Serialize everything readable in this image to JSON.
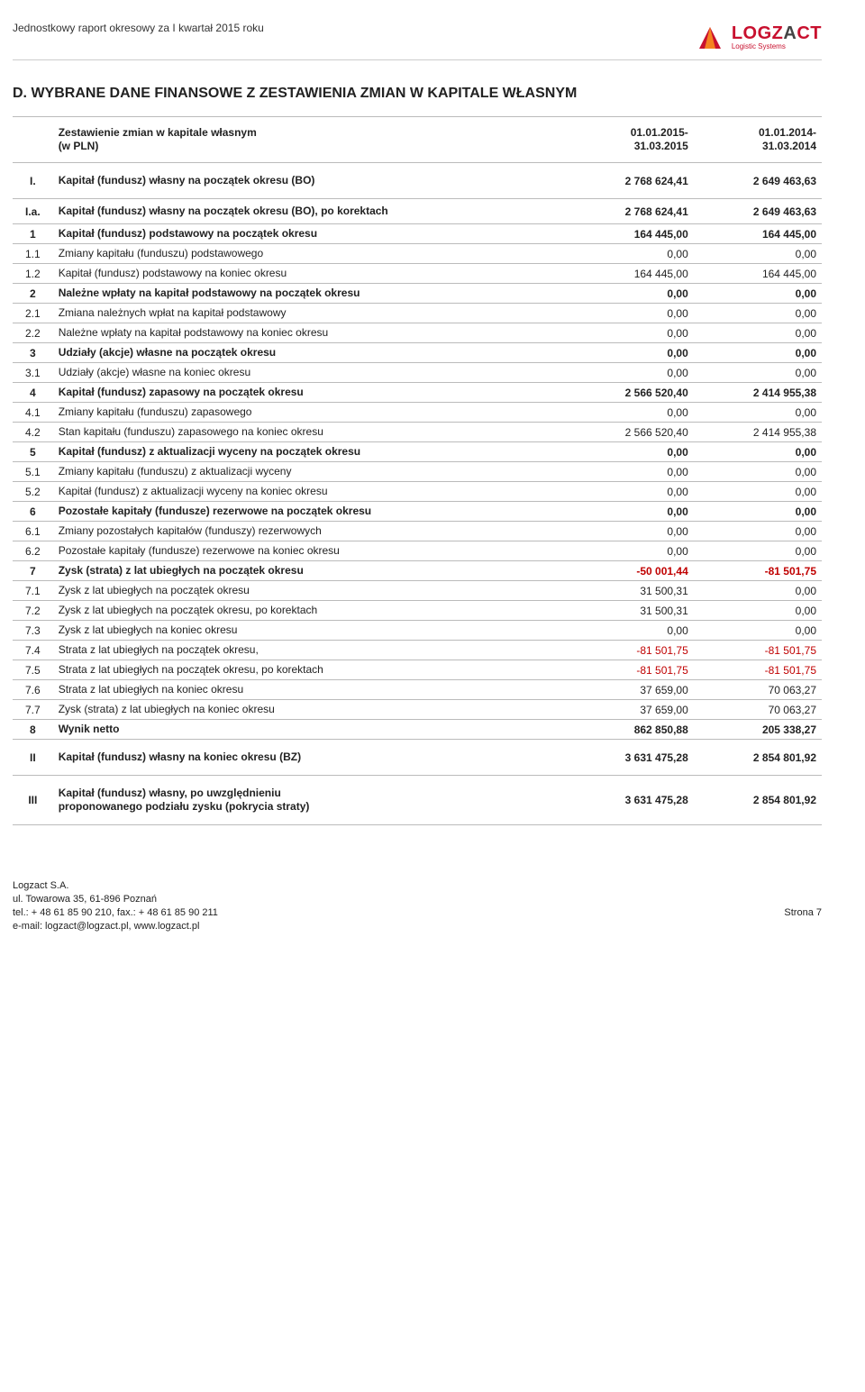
{
  "header": {
    "report_line": "Jednostkowy raport okresowy za I kwartał 2015 roku",
    "logo_main_l": "LOGZ",
    "logo_main_a": "A",
    "logo_main_ct": "CT",
    "logo_sub": "Logistic Systems",
    "logo_colors": {
      "red": "#c8102e",
      "orange": "#f58220",
      "dark": "#444"
    }
  },
  "section_title": "D.  WYBRANE DANE FINANSOWE Z ZESTAWIENIA ZMIAN W KAPITALE WŁASNYM",
  "table": {
    "head_label": "Zestawienie zmian w kapitale własnym\n(w PLN)",
    "head_c1": "01.01.2015-\n31.03.2015",
    "head_c2": "01.01.2014-\n31.03.2014",
    "rows": [
      {
        "id": "I.",
        "label": "Kapitał (fundusz) własny na początek okresu (BO)",
        "v1": "2 768 624,41",
        "v2": "2 649 463,63",
        "bold": true,
        "tall": true
      },
      {
        "id": "I.a.",
        "label": "Kapitał (fundusz) własny na początek okresu (BO), po korektach",
        "v1": "2 768 624,41",
        "v2": "2 649 463,63",
        "bold": true,
        "semitall": true
      },
      {
        "id": "1",
        "label": "Kapitał (fundusz) podstawowy na początek okresu",
        "v1": "164 445,00",
        "v2": "164 445,00",
        "bold": true
      },
      {
        "id": "1.1",
        "label": "Zmiany kapitału (funduszu) podstawowego",
        "v1": "0,00",
        "v2": "0,00"
      },
      {
        "id": "1.2",
        "label": "Kapitał (fundusz) podstawowy na koniec okresu",
        "v1": "164 445,00",
        "v2": "164 445,00"
      },
      {
        "id": "2",
        "label": "Należne wpłaty na kapitał podstawowy na początek okresu",
        "v1": "0,00",
        "v2": "0,00",
        "bold": true
      },
      {
        "id": "2.1",
        "label": "Zmiana należnych wpłat na kapitał podstawowy",
        "v1": "0,00",
        "v2": "0,00"
      },
      {
        "id": "2.2",
        "label": "Należne wpłaty na kapitał podstawowy na koniec okresu",
        "v1": "0,00",
        "v2": "0,00"
      },
      {
        "id": "3",
        "label": "Udziały (akcje) własne na początek okresu",
        "v1": "0,00",
        "v2": "0,00",
        "bold": true
      },
      {
        "id": "3.1",
        "label": "Udziały (akcje) własne na koniec okresu",
        "v1": "0,00",
        "v2": "0,00"
      },
      {
        "id": "4",
        "label": "Kapitał (fundusz) zapasowy na początek okresu",
        "v1": "2 566 520,40",
        "v2": "2 414 955,38",
        "bold": true
      },
      {
        "id": "4.1",
        "label": "Zmiany kapitału (funduszu) zapasowego",
        "v1": "0,00",
        "v2": "0,00"
      },
      {
        "id": "4.2",
        "label": "Stan kapitału (funduszu) zapasowego na koniec okresu",
        "v1": "2 566 520,40",
        "v2": "2 414 955,38"
      },
      {
        "id": "5",
        "label": "Kapitał (fundusz) z aktualizacji wyceny na początek okresu",
        "v1": "0,00",
        "v2": "0,00",
        "bold": true
      },
      {
        "id": "5.1",
        "label": "Zmiany kapitału (funduszu) z aktualizacji wyceny",
        "v1": "0,00",
        "v2": "0,00"
      },
      {
        "id": "5.2",
        "label": "Kapitał (fundusz) z aktualizacji wyceny na koniec okresu",
        "v1": "0,00",
        "v2": "0,00"
      },
      {
        "id": "6",
        "label": "Pozostałe  kapitały (fundusze) rezerwowe na początek okresu",
        "v1": "0,00",
        "v2": "0,00",
        "bold": true
      },
      {
        "id": "6.1",
        "label": "Zmiany pozostałych kapitałów (funduszy) rezerwowych",
        "v1": "0,00",
        "v2": "0,00"
      },
      {
        "id": "6.2",
        "label": "Pozostałe kapitały (fundusze) rezerwowe na koniec okresu",
        "v1": "0,00",
        "v2": "0,00"
      },
      {
        "id": "7",
        "label": "Zysk (strata) z lat ubiegłych na początek okresu",
        "v1": "-50 001,44",
        "v2": "-81 501,75",
        "bold": true
      },
      {
        "id": "7.1",
        "label": "Zysk z lat ubiegłych na początek okresu",
        "v1": "31 500,31",
        "v2": "0,00"
      },
      {
        "id": "7.2",
        "label": "Zysk z lat ubiegłych na początek okresu, po korektach",
        "v1": "31 500,31",
        "v2": "0,00"
      },
      {
        "id": "7.3",
        "label": "Zysk z lat ubiegłych na koniec okresu",
        "v1": "0,00",
        "v2": "0,00"
      },
      {
        "id": "7.4",
        "label": "Strata z lat ubiegłych na początek okresu,",
        "v1": "-81 501,75",
        "v2": "-81 501,75"
      },
      {
        "id": "7.5",
        "label": "Strata z lat ubiegłych na początek okresu, po korektach",
        "v1": "-81 501,75",
        "v2": "-81 501,75"
      },
      {
        "id": "7.6",
        "label": "Strata z lat ubiegłych na koniec okresu",
        "v1": "37 659,00",
        "v2": "70 063,27"
      },
      {
        "id": "7.7",
        "label": "Zysk (strata) z lat ubiegłych na koniec okresu",
        "v1": "37 659,00",
        "v2": "70 063,27"
      },
      {
        "id": "8",
        "label": "Wynik netto",
        "v1": "862 850,88",
        "v2": "205 338,27",
        "bold": true
      },
      {
        "id": "II",
        "label": "Kapitał (fundusz) własny na koniec okresu (BZ)",
        "v1": "3 631 475,28",
        "v2": "2 854 801,92",
        "bold": true,
        "tall": true
      },
      {
        "id": "III",
        "label": "Kapitał (fundusz) własny, po uwzględnieniu\nproponowanego podziału zysku (pokrycia straty)",
        "v1": "3 631 475,28",
        "v2": "2 854 801,92",
        "bold": true,
        "tall": true
      }
    ]
  },
  "footer": {
    "company": "Logzact S.A.",
    "address": "ul. Towarowa 35, 61-896 Poznań",
    "phone": "tel.: + 48 61 85 90 210, fax.: + 48 61 85 90 211",
    "email": "e-mail: logzact@logzact.pl, www.logzact.pl",
    "page": "Strona 7"
  }
}
